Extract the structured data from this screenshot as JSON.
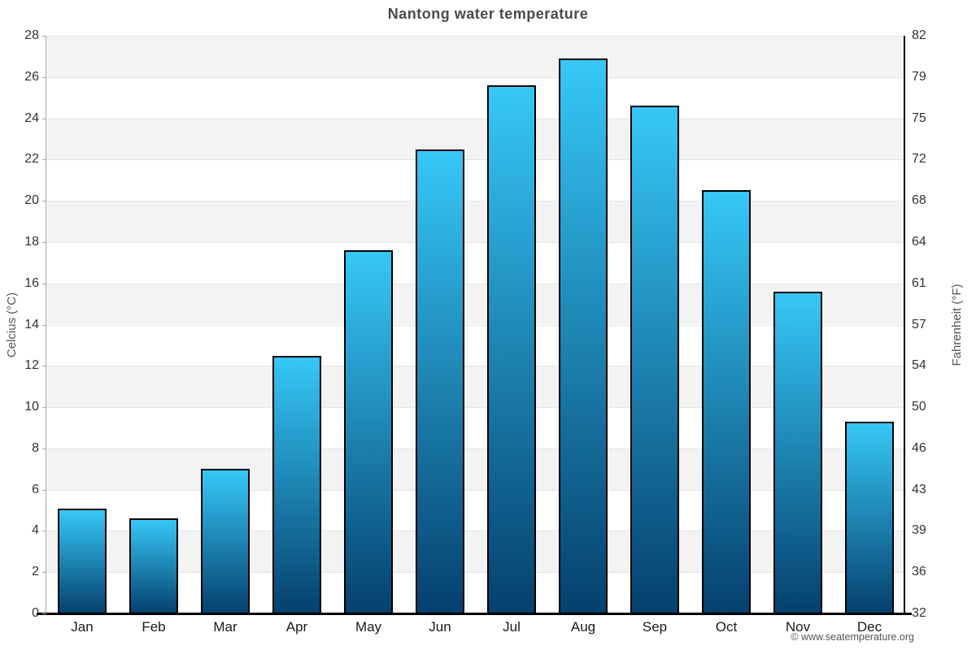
{
  "title": "Nantong water temperature",
  "footer_credit": "© www.seatemperature.org",
  "chart_data": {
    "type": "bar",
    "title": "Nantong water temperature",
    "categories": [
      "Jan",
      "Feb",
      "Mar",
      "Apr",
      "May",
      "Jun",
      "Jul",
      "Aug",
      "Sep",
      "Oct",
      "Nov",
      "Dec"
    ],
    "values": [
      5.1,
      4.6,
      7.0,
      12.5,
      17.6,
      22.5,
      25.6,
      26.9,
      24.6,
      20.5,
      15.6,
      9.3
    ],
    "unit": "°C",
    "xlabel": "",
    "ylabel_left": "Celcius (°C)",
    "ylabel_right": "Fahrenheit (°F)",
    "ylim": [
      0,
      28
    ],
    "yticks_left": [
      0,
      2,
      4,
      6,
      8,
      10,
      12,
      14,
      16,
      18,
      20,
      22,
      24,
      26,
      28
    ],
    "yticks_right": [
      32,
      36,
      39,
      43,
      46,
      50,
      54,
      57,
      61,
      64,
      68,
      72,
      75,
      79,
      82
    ],
    "grid": "alternating-horizontal-bands",
    "legend": "none",
    "colors": {
      "bar_gradient_top": "#36c8f7",
      "bar_gradient_bottom": "#05406e",
      "bar_border": "#000000",
      "band_stripe": "#f3f3f3",
      "gridline": "#e4e4e4",
      "axis_left": "#a8a8a8",
      "axis_right": "#000000",
      "axis_bottom": "#000000",
      "title_text": "#4a4a4a",
      "tick_text": "#333333",
      "month_text": "#1a1a1a",
      "axis_title_text": "#555555",
      "footer_text": "#555555",
      "background": "#ffffff"
    }
  }
}
